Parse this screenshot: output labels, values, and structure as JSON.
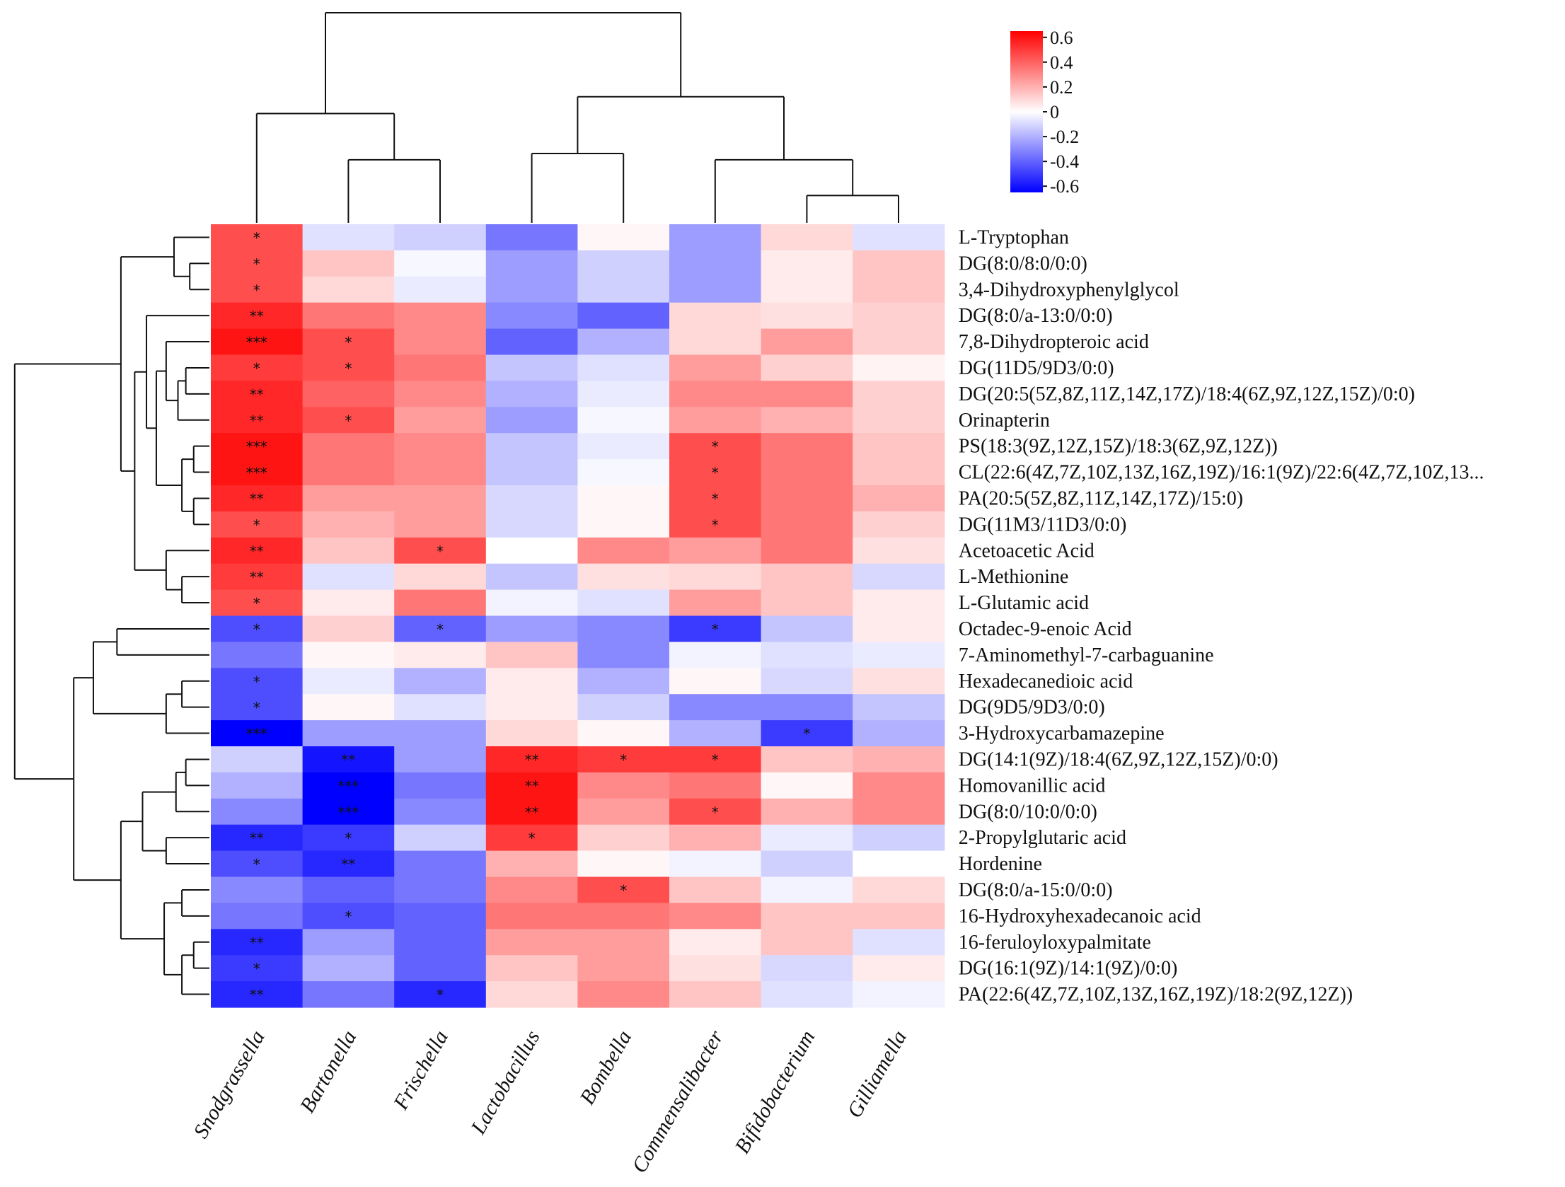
{
  "chart_data": {
    "type": "heatmap",
    "title": "",
    "columns": [
      "Snodgrassella",
      "Bartonella",
      "Frischella",
      "Lactobacillus",
      "Bombella",
      "Commensalibacter",
      "Bifidobacterium",
      "Gilliamella"
    ],
    "rows": [
      "L-Tryptophan",
      "DG(8:0/8:0/0:0)",
      "3,4-Dihydroxyphenylglycol",
      "DG(8:0/a-13:0/0:0)",
      "7,8-Dihydropteroic acid",
      "DG(11D5/9D3/0:0)",
      "DG(20:5(5Z,8Z,11Z,14Z,17Z)/18:4(6Z,9Z,12Z,15Z)/0:0)",
      "Orinapterin",
      "PS(18:3(9Z,12Z,15Z)/18:3(6Z,9Z,12Z))",
      "CL(22:6(4Z,7Z,10Z,13Z,16Z,19Z)/16:1(9Z)/22:6(4Z,7Z,10Z,13...",
      "PA(20:5(5Z,8Z,11Z,14Z,17Z)/15:0)",
      "DG(11M3/11D3/0:0)",
      "Acetoacetic Acid",
      "L-Methionine",
      "L-Glutamic acid",
      "Octadec-9-enoic Acid",
      "7-Aminomethyl-7-carbaguanine",
      "Hexadecanedioic acid",
      "DG(9D5/9D3/0:0)",
      "3-Hydroxycarbamazepine",
      "DG(14:1(9Z)/18:4(6Z,9Z,12Z,15Z)/0:0)",
      "Homovanillic acid",
      "DG(8:0/10:0/0:0)",
      "2-Propylglutaric acid",
      "Hordenine",
      "DG(8:0/a-15:0/0:0)",
      "16-Hydroxyhexadecanoic acid",
      "16-feruloyloxypalmitate",
      "DG(16:1(9Z)/14:1(9Z)/0:0)",
      "PA(22:6(4Z,7Z,10Z,13Z,16Z,19Z)/18:2(9Z,12Z))"
    ],
    "values": [
      [
        0.45,
        -0.08,
        -0.12,
        -0.35,
        0.02,
        -0.25,
        0.1,
        -0.08
      ],
      [
        0.45,
        0.15,
        -0.02,
        -0.25,
        -0.12,
        -0.25,
        0.05,
        0.15
      ],
      [
        0.45,
        0.1,
        -0.05,
        -0.25,
        -0.12,
        -0.25,
        0.05,
        0.15
      ],
      [
        0.55,
        0.35,
        0.3,
        -0.3,
        -0.4,
        0.1,
        0.08,
        0.12
      ],
      [
        0.6,
        0.45,
        0.3,
        -0.4,
        -0.2,
        0.1,
        0.25,
        0.12
      ],
      [
        0.5,
        0.45,
        0.35,
        -0.15,
        -0.08,
        0.25,
        0.12,
        0.03
      ],
      [
        0.55,
        0.4,
        0.3,
        -0.2,
        -0.05,
        0.3,
        0.3,
        0.12
      ],
      [
        0.55,
        0.45,
        0.25,
        -0.25,
        -0.02,
        0.25,
        0.2,
        0.12
      ],
      [
        0.6,
        0.35,
        0.3,
        -0.15,
        -0.05,
        0.45,
        0.35,
        0.15
      ],
      [
        0.6,
        0.35,
        0.3,
        -0.15,
        -0.02,
        0.45,
        0.35,
        0.15
      ],
      [
        0.55,
        0.25,
        0.25,
        -0.1,
        0.02,
        0.45,
        0.35,
        0.2
      ],
      [
        0.45,
        0.2,
        0.25,
        -0.1,
        0.02,
        0.45,
        0.35,
        0.12
      ],
      [
        0.55,
        0.15,
        0.45,
        0.0,
        0.3,
        0.25,
        0.35,
        0.08
      ],
      [
        0.5,
        -0.08,
        0.1,
        -0.15,
        0.08,
        0.1,
        0.15,
        -0.1
      ],
      [
        0.45,
        0.05,
        0.35,
        -0.03,
        -0.08,
        0.25,
        0.15,
        0.05
      ],
      [
        -0.45,
        0.12,
        -0.4,
        -0.25,
        -0.3,
        -0.5,
        -0.15,
        0.05
      ],
      [
        -0.35,
        0.02,
        0.05,
        0.15,
        -0.3,
        -0.03,
        -0.08,
        -0.05
      ],
      [
        -0.45,
        -0.05,
        -0.2,
        0.05,
        -0.2,
        0.02,
        -0.1,
        0.08
      ],
      [
        -0.45,
        0.02,
        -0.08,
        0.05,
        -0.12,
        -0.3,
        -0.3,
        -0.15
      ],
      [
        -0.65,
        -0.25,
        -0.25,
        0.1,
        0.02,
        -0.2,
        -0.5,
        -0.2
      ],
      [
        -0.12,
        -0.6,
        -0.25,
        0.55,
        0.5,
        0.5,
        0.15,
        0.2
      ],
      [
        -0.2,
        -0.65,
        -0.35,
        0.6,
        0.3,
        0.35,
        0.02,
        0.3
      ],
      [
        -0.3,
        -0.65,
        -0.3,
        0.6,
        0.25,
        0.45,
        0.2,
        0.3
      ],
      [
        -0.55,
        -0.5,
        -0.12,
        0.5,
        0.12,
        0.2,
        -0.05,
        -0.12
      ],
      [
        -0.45,
        -0.55,
        -0.35,
        0.2,
        0.02,
        -0.03,
        -0.12,
        0.0
      ],
      [
        -0.3,
        -0.4,
        -0.35,
        0.3,
        0.45,
        0.15,
        -0.03,
        0.1
      ],
      [
        -0.35,
        -0.45,
        -0.4,
        0.35,
        0.35,
        0.3,
        0.15,
        0.15
      ],
      [
        -0.55,
        -0.25,
        -0.4,
        0.25,
        0.25,
        0.05,
        0.15,
        -0.08
      ],
      [
        -0.5,
        -0.2,
        -0.4,
        0.15,
        0.25,
        0.08,
        -0.1,
        0.05
      ],
      [
        -0.55,
        -0.35,
        -0.55,
        0.1,
        0.3,
        0.15,
        -0.08,
        -0.03
      ]
    ],
    "significance": [
      [
        "*",
        "",
        "",
        "",
        "",
        "",
        "",
        ""
      ],
      [
        "*",
        "",
        "",
        "",
        "",
        "",
        "",
        ""
      ],
      [
        "*",
        "",
        "",
        "",
        "",
        "",
        "",
        ""
      ],
      [
        "**",
        "",
        "",
        "",
        "",
        "",
        "",
        ""
      ],
      [
        "***",
        "*",
        "",
        "",
        "",
        "",
        "",
        ""
      ],
      [
        "*",
        "*",
        "",
        "",
        "",
        "",
        "",
        ""
      ],
      [
        "**",
        "",
        "",
        "",
        "",
        "",
        "",
        ""
      ],
      [
        "**",
        "*",
        "",
        "",
        "",
        "",
        "",
        ""
      ],
      [
        "***",
        "",
        "",
        "",
        "",
        "*",
        "",
        ""
      ],
      [
        "***",
        "",
        "",
        "",
        "",
        "*",
        "",
        ""
      ],
      [
        "**",
        "",
        "",
        "",
        "",
        "*",
        "",
        ""
      ],
      [
        "*",
        "",
        "",
        "",
        "",
        "*",
        "",
        ""
      ],
      [
        "**",
        "",
        "*",
        "",
        "",
        "",
        "",
        ""
      ],
      [
        "**",
        "",
        "",
        "",
        "",
        "",
        "",
        ""
      ],
      [
        "*",
        "",
        "",
        "",
        "",
        "",
        "",
        ""
      ],
      [
        "*",
        "",
        "*",
        "",
        "",
        "*",
        "",
        ""
      ],
      [
        "",
        "",
        "",
        "",
        "",
        "",
        "",
        ""
      ],
      [
        "*",
        "",
        "",
        "",
        "",
        "",
        "",
        ""
      ],
      [
        "*",
        "",
        "",
        "",
        "",
        "",
        "",
        ""
      ],
      [
        "***",
        "",
        "",
        "",
        "",
        "",
        "*",
        ""
      ],
      [
        "",
        "**",
        "",
        "**",
        "*",
        "*",
        "",
        ""
      ],
      [
        "",
        "***",
        "",
        "**",
        "",
        "",
        "",
        ""
      ],
      [
        "",
        "***",
        "",
        "**",
        "",
        "*",
        "",
        ""
      ],
      [
        "**",
        "*",
        "",
        "*",
        "",
        "",
        "",
        ""
      ],
      [
        "*",
        "**",
        "",
        "",
        "",
        "",
        "",
        ""
      ],
      [
        "",
        "",
        "",
        "",
        "*",
        "",
        "",
        ""
      ],
      [
        "",
        "*",
        "",
        "",
        "",
        "",
        "",
        ""
      ],
      [
        "**",
        "",
        "",
        "",
        "",
        "",
        "",
        ""
      ],
      [
        "*",
        "",
        "",
        "",
        "",
        "",
        "",
        ""
      ],
      [
        "**",
        "",
        "*",
        "",
        "",
        "",
        "",
        ""
      ]
    ],
    "color_scale": {
      "min": -0.65,
      "max": 0.65,
      "low_color": "#0000ff",
      "mid_color": "#ffffff",
      "high_color": "#ff0000",
      "ticks": [
        "0.6",
        "0.4",
        "0.2",
        "0",
        "-0.2",
        "-0.4",
        "-0.6"
      ],
      "tick_values": [
        0.6,
        0.4,
        0.2,
        0,
        -0.2,
        -0.4,
        -0.6
      ],
      "position": "top-right"
    },
    "column_dendrogram": {
      "merges": [
        [
          1,
          2
        ],
        [
          -1,
          1
        ],
        [
          7,
          8
        ],
        [
          6,
          3
        ],
        [
          4,
          5
        ],
        [
          5,
          4
        ],
        [
          2,
          6
        ]
      ],
      "heights": [
        0.3,
        0.52,
        0.13,
        0.3,
        0.33,
        0.6,
        1.0
      ]
    },
    "row_dendrogram": {
      "merges": [
        [
          2,
          3
        ],
        [
          1,
          1
        ],
        [
          16,
          17
        ],
        [
          15,
          3
        ],
        [
          12,
          13
        ],
        [
          5,
          4
        ],
        [
          6,
          6
        ],
        [
          4,
          7
        ],
        [
          10,
          11
        ],
        [
          9,
          9
        ],
        [
          11,
          10
        ],
        [
          8,
          8
        ],
        [
          14,
          15
        ],
        [
          13,
          5
        ],
        [
          3,
          12
        ],
        [
          20,
          14
        ],
        [
          19,
          18
        ],
        [
          21,
          22
        ],
        [
          18,
          17
        ],
        [
          17,
          16
        ],
        [
          26,
          27
        ],
        [
          28,
          29
        ],
        [
          30,
          21
        ],
        [
          29,
          22
        ],
        [
          25,
          23
        ],
        [
          24,
          25
        ],
        [
          23,
          20
        ],
        [
          22,
          19
        ],
        [
          7,
          27
        ],
        [
          27,
          28
        ]
      ],
      "heights": [
        0.18,
        0.44,
        0.14,
        0.44,
        0.25,
        0.3,
        0.28,
        0.55,
        0.12,
        0.28,
        0.12,
        0.34,
        0.22,
        0.4,
        0.8,
        0.7,
        0.14,
        0.28,
        0.2,
        0.58,
        0.14,
        0.2,
        0.35,
        0.45,
        0.22,
        0.62,
        0.66,
        0.8,
        0.98,
        0.2
      ],
      "order": []
    }
  }
}
